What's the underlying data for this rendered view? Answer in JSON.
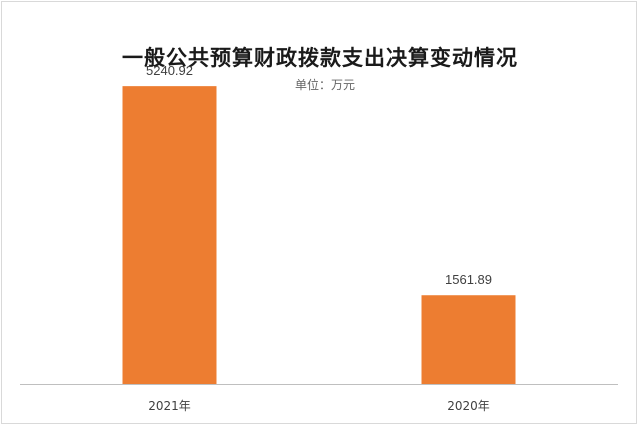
{
  "chart_data": {
    "type": "bar",
    "title": "一般公共预算财政拨款支出决算变动情况",
    "subtitle": "单位：万元",
    "categories": [
      "2021年",
      "2020年"
    ],
    "values": [
      5240.92,
      1561.89
    ],
    "value_labels": [
      "5240.92",
      "1561.89"
    ],
    "ylim": [
      0,
      6000
    ],
    "grid": false,
    "bar_color": "#ed7d31"
  }
}
